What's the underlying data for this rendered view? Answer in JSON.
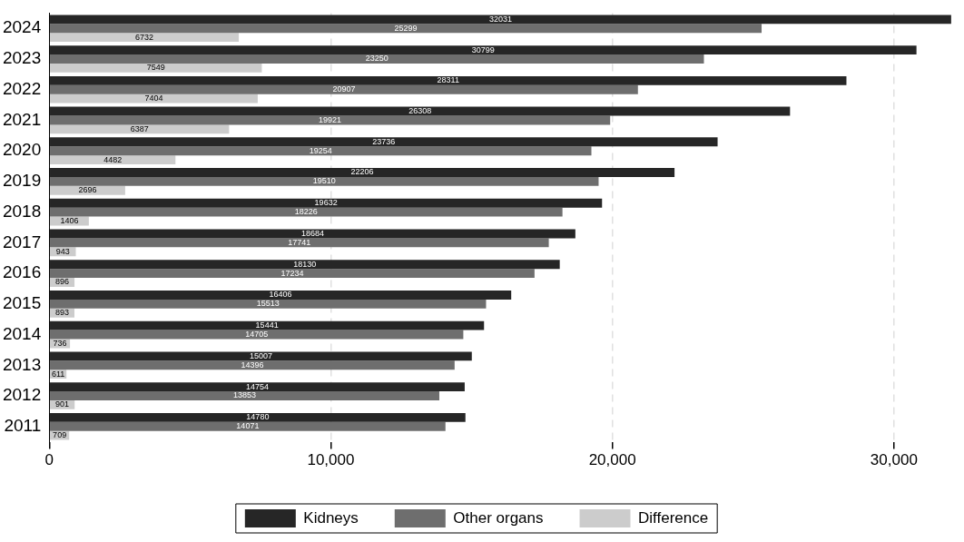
{
  "chart_data": {
    "type": "bar",
    "orientation": "horizontal",
    "categories": [
      "2024",
      "2023",
      "2022",
      "2021",
      "2020",
      "2019",
      "2018",
      "2017",
      "2016",
      "2015",
      "2014",
      "2013",
      "2012",
      "2011"
    ],
    "series": [
      {
        "name": "Kidneys",
        "color": "#262626",
        "values": [
          32031,
          30799,
          28311,
          26308,
          23736,
          22206,
          19632,
          18684,
          18130,
          16406,
          15441,
          15007,
          14754,
          14780
        ]
      },
      {
        "name": "Other organs",
        "color": "#6e6e6e",
        "values": [
          25299,
          23250,
          20907,
          19921,
          19254,
          19510,
          18226,
          17741,
          17234,
          15513,
          14705,
          14396,
          13853,
          14071
        ]
      },
      {
        "name": "Difference",
        "color": "#cccccc",
        "values": [
          6732,
          7549,
          7404,
          6387,
          4482,
          2696,
          1406,
          943,
          896,
          893,
          736,
          611,
          901,
          709
        ]
      }
    ],
    "xlim": [
      0,
      32100
    ],
    "xticks": [
      {
        "value": 0,
        "label": "0"
      },
      {
        "value": 10000,
        "label": "10,000"
      },
      {
        "value": 20000,
        "label": "20,000"
      },
      {
        "value": 30000,
        "label": "30,000"
      }
    ],
    "grid": "x",
    "legend": "bottom",
    "data_labels": true
  }
}
